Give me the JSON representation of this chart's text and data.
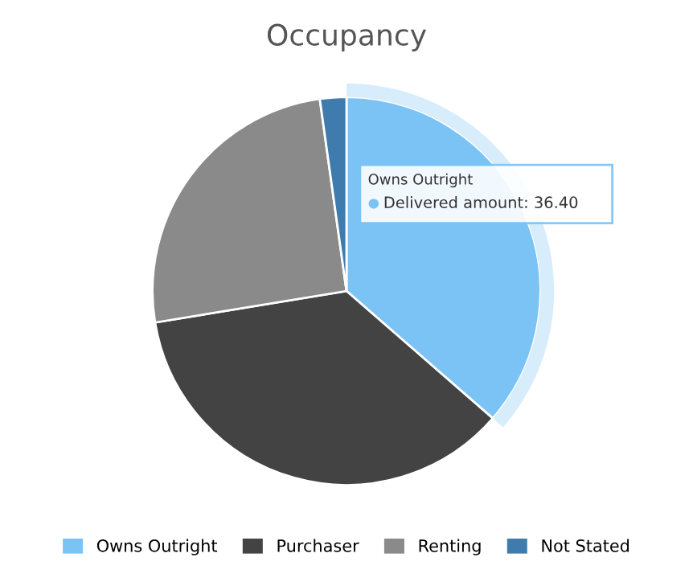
{
  "chart_data": {
    "type": "pie",
    "title": "Occupancy",
    "categories": [
      "Owns Outright",
      "Purchaser",
      "Renting",
      "Not Stated"
    ],
    "values": [
      36.4,
      36,
      25.4,
      2.2
    ],
    "colors": [
      "#7cc3f5",
      "#434343",
      "#8a8a8a",
      "#3f7cad"
    ],
    "legend": "bottom",
    "annotations": [
      "Owns Outright",
      "Delivered amount: 36.40"
    ]
  }
}
